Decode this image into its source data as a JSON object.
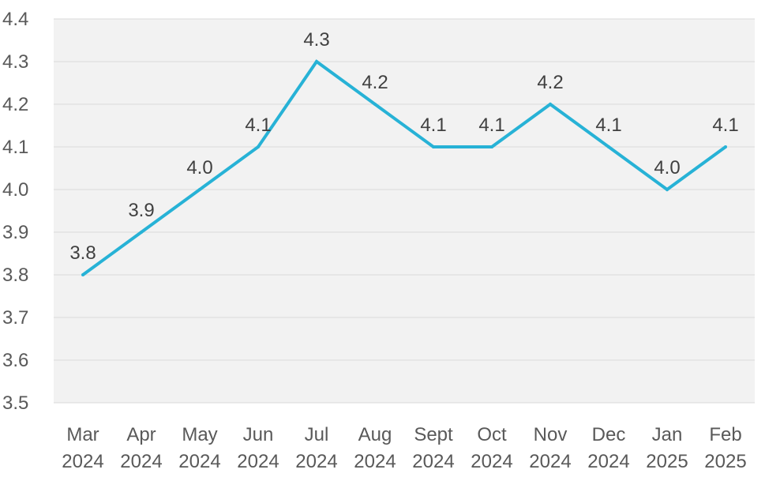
{
  "chart_data": {
    "type": "line",
    "title": "",
    "xlabel": "",
    "ylabel": "",
    "categories": [
      [
        "Mar",
        "2024"
      ],
      [
        "Apr",
        "2024"
      ],
      [
        "May",
        "2024"
      ],
      [
        "Jun",
        "2024"
      ],
      [
        "Jul",
        "2024"
      ],
      [
        "Aug",
        "2024"
      ],
      [
        "Sept",
        "2024"
      ],
      [
        "Oct",
        "2024"
      ],
      [
        "Nov",
        "2024"
      ],
      [
        "Dec",
        "2024"
      ],
      [
        "Jan",
        "2025"
      ],
      [
        "Feb",
        "2025"
      ]
    ],
    "series": [
      {
        "values": [
          3.8,
          3.9,
          4.0,
          4.1,
          4.3,
          4.2,
          4.1,
          4.1,
          4.2,
          4.1,
          4.0,
          4.1
        ],
        "data_labels": [
          "3.8",
          "3.9",
          "4.0",
          "4.1",
          "4.3",
          "4.2",
          "4.1",
          "4.1",
          "4.2",
          "4.1",
          "4.0",
          "4.1"
        ],
        "color": "#27b2d6"
      }
    ],
    "ylim": [
      3.5,
      4.4
    ],
    "yticks": [
      "3.5",
      "3.6",
      "3.7",
      "3.8",
      "3.9",
      "4.0",
      "4.1",
      "4.2",
      "4.3",
      "4.4"
    ],
    "grid": true,
    "legend": "none",
    "plot_background": "#f2f2f2",
    "grid_color": "#d9d9d9"
  }
}
